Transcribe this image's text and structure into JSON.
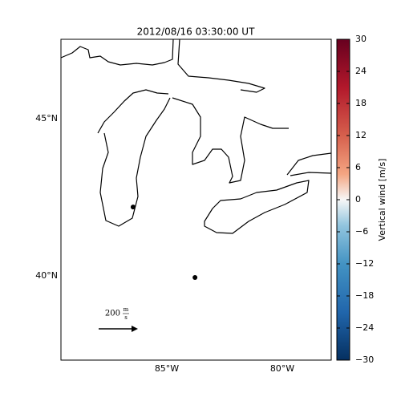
{
  "map": {
    "title": "2012/08/16 03:30:00 UT",
    "lat_ticks": [
      {
        "value": 45,
        "label": "45°N"
      },
      {
        "value": 40,
        "label": "40°N"
      }
    ],
    "lon_ticks": [
      {
        "value": -85,
        "label": "85°W"
      },
      {
        "value": -80,
        "label": "80°W"
      }
    ],
    "points": [
      {
        "lon": -86.46,
        "lat": 42.19
      },
      {
        "lon": -83.78,
        "lat": 39.95
      }
    ],
    "colorbar": {
      "label": "Vertical wind [m/s]",
      "lim": [
        -30,
        30
      ],
      "ticks": [
        30,
        24,
        18,
        12,
        6,
        0,
        {
          "value": -6,
          "label": "−6"
        },
        {
          "value": -12,
          "label": "−12"
        },
        {
          "value": -18,
          "label": "−18"
        },
        {
          "value": -24,
          "label": "−24"
        },
        {
          "value": -30,
          "label": "−30"
        }
      ]
    },
    "vector_key": {
      "value": 200,
      "unit_num": "m",
      "unit_den": "s"
    }
  }
}
